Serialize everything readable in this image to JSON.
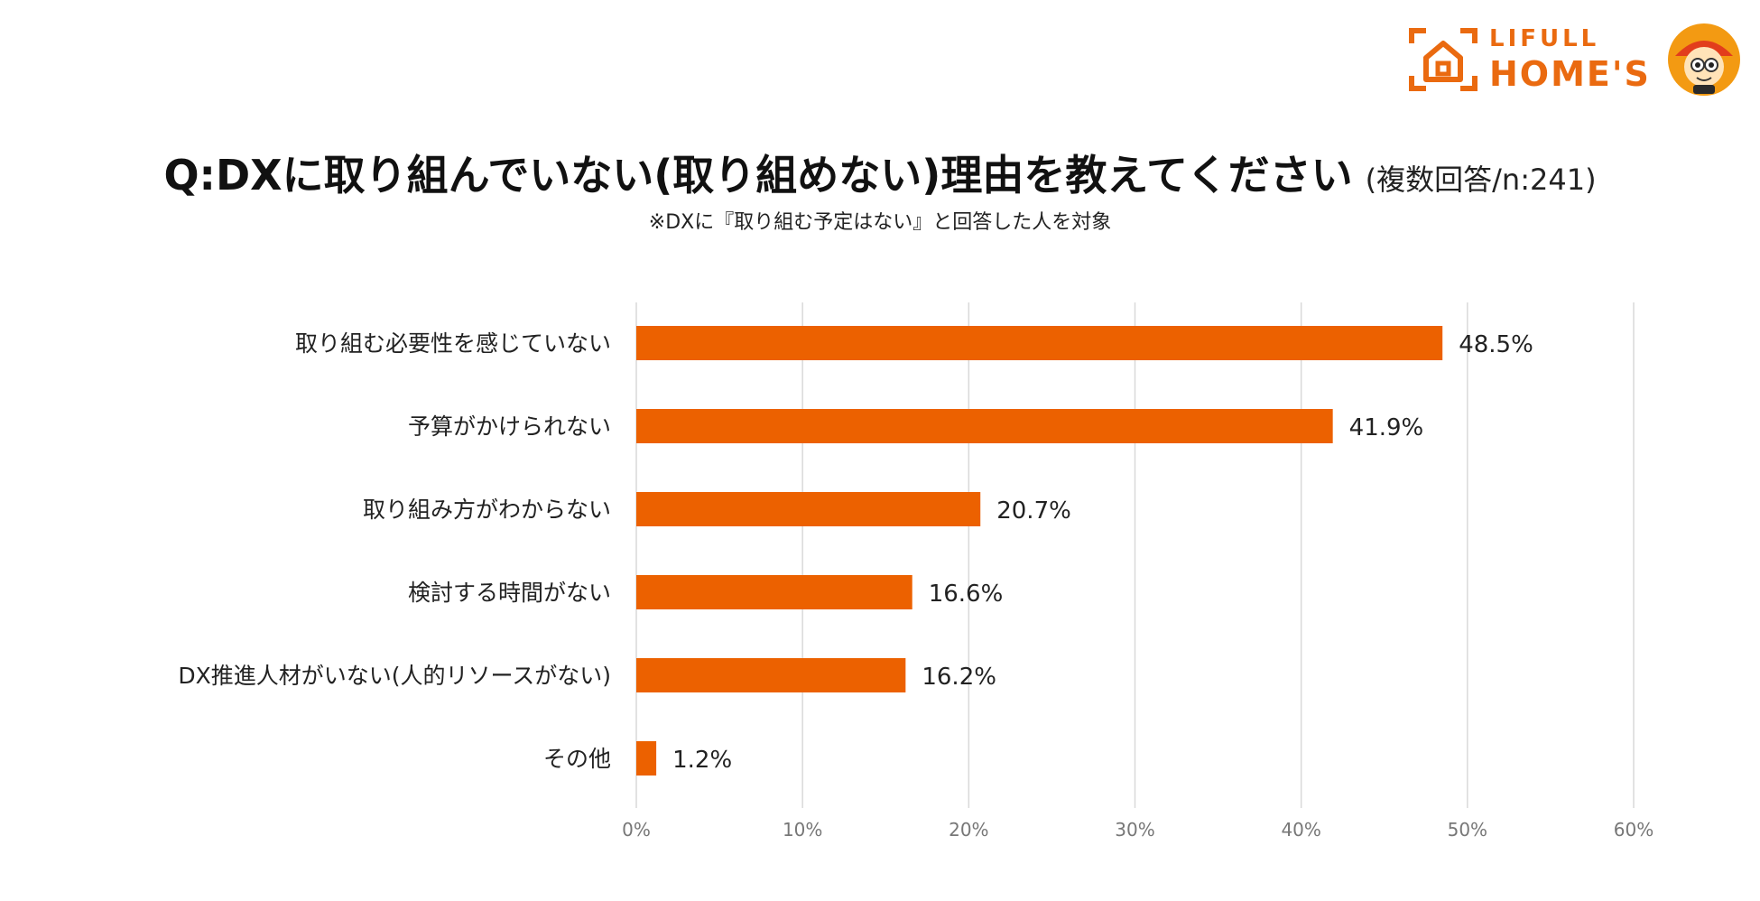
{
  "brand": {
    "line1": "LIFULL",
    "line2": "HOME'S",
    "color": "#ea6a10"
  },
  "chart_data": {
    "type": "bar",
    "orientation": "horizontal",
    "title": "Q:DXに取り組んでいない(取り組めない)理由を教えてください",
    "title_note": "(複数回答/n:241)",
    "subtitle": "※DXに『取り組む予定はない』と回答した人を対象",
    "categories": [
      "取り組む必要性を感じていない",
      "予算がかけられない",
      "取り組み方がわからない",
      "検討する時間がない",
      "DX推進人材がいない(人的リソースがない)",
      "その他"
    ],
    "values": [
      48.5,
      41.9,
      20.7,
      16.6,
      16.2,
      1.2
    ],
    "value_labels": [
      "48.5%",
      "41.9%",
      "20.7%",
      "16.6%",
      "16.2%",
      "1.2%"
    ],
    "xlim": [
      0,
      60
    ],
    "ticks": [
      0,
      10,
      20,
      30,
      40,
      50,
      60
    ],
    "tick_labels": [
      "0%",
      "10%",
      "20%",
      "30%",
      "40%",
      "50%",
      "60%"
    ],
    "grid": true,
    "bar_color": "#ec6100",
    "grid_color": "#d9d9d9"
  }
}
